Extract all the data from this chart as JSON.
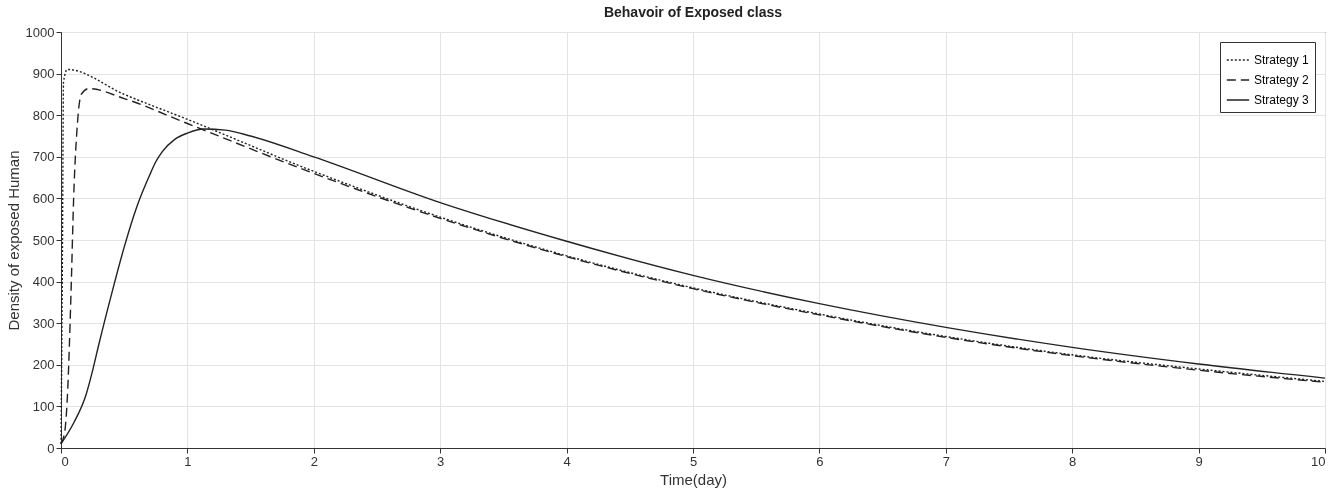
{
  "chart_data": {
    "type": "line",
    "title": "Behavoir of Exposed class",
    "xlabel": "Time(day)",
    "ylabel": "Density of exposed Human",
    "xlim": [
      0,
      10
    ],
    "xticks": [
      0,
      1,
      2,
      3,
      4,
      5,
      6,
      7,
      8,
      9,
      10
    ],
    "ylim": [
      0,
      1000
    ],
    "yticks": [
      0,
      100,
      200,
      300,
      400,
      500,
      600,
      700,
      800,
      900,
      1000
    ],
    "grid": true,
    "legend": "top right",
    "marker": "none",
    "series": [
      {
        "name": "Strategy 1",
        "color": "#222222",
        "line_style": "dotted",
        "x": [
          0,
          0.01,
          0.02,
          0.05,
          0.5,
          1,
          2,
          3,
          4,
          5,
          6,
          7,
          8,
          9,
          10
        ],
        "values": [
          10,
          400,
          880,
          910,
          850,
          790,
          665,
          555,
          462,
          385,
          322,
          268,
          224,
          190,
          160
        ]
      },
      {
        "name": "Strategy 2",
        "color": "#222222",
        "line_style": "dashed",
        "x": [
          0,
          0.03,
          0.05,
          0.08,
          0.1,
          0.13,
          0.16,
          0.22,
          0.5,
          1,
          2,
          3,
          4,
          5,
          6,
          7,
          8,
          9,
          10
        ],
        "values": [
          10,
          40,
          120,
          380,
          600,
          780,
          850,
          864,
          840,
          780,
          660,
          552,
          460,
          383,
          320,
          266,
          222,
          187,
          158
        ]
      },
      {
        "name": "Strategy 3",
        "color": "#222222",
        "line_style": "solid",
        "x": [
          0,
          0.1,
          0.2,
          0.25,
          0.3,
          0.4,
          0.5,
          0.6,
          0.7,
          0.75,
          0.8,
          0.9,
          1,
          1.13,
          1.3,
          1.5,
          2,
          3,
          4,
          5,
          6,
          7,
          8,
          9,
          10
        ],
        "values": [
          10,
          60,
          130,
          186,
          250,
          370,
          483,
          580,
          655,
          688,
          712,
          742,
          757,
          767,
          764,
          750,
          700,
          590,
          497,
          415,
          347,
          290,
          242,
          202,
          168
        ]
      }
    ]
  }
}
